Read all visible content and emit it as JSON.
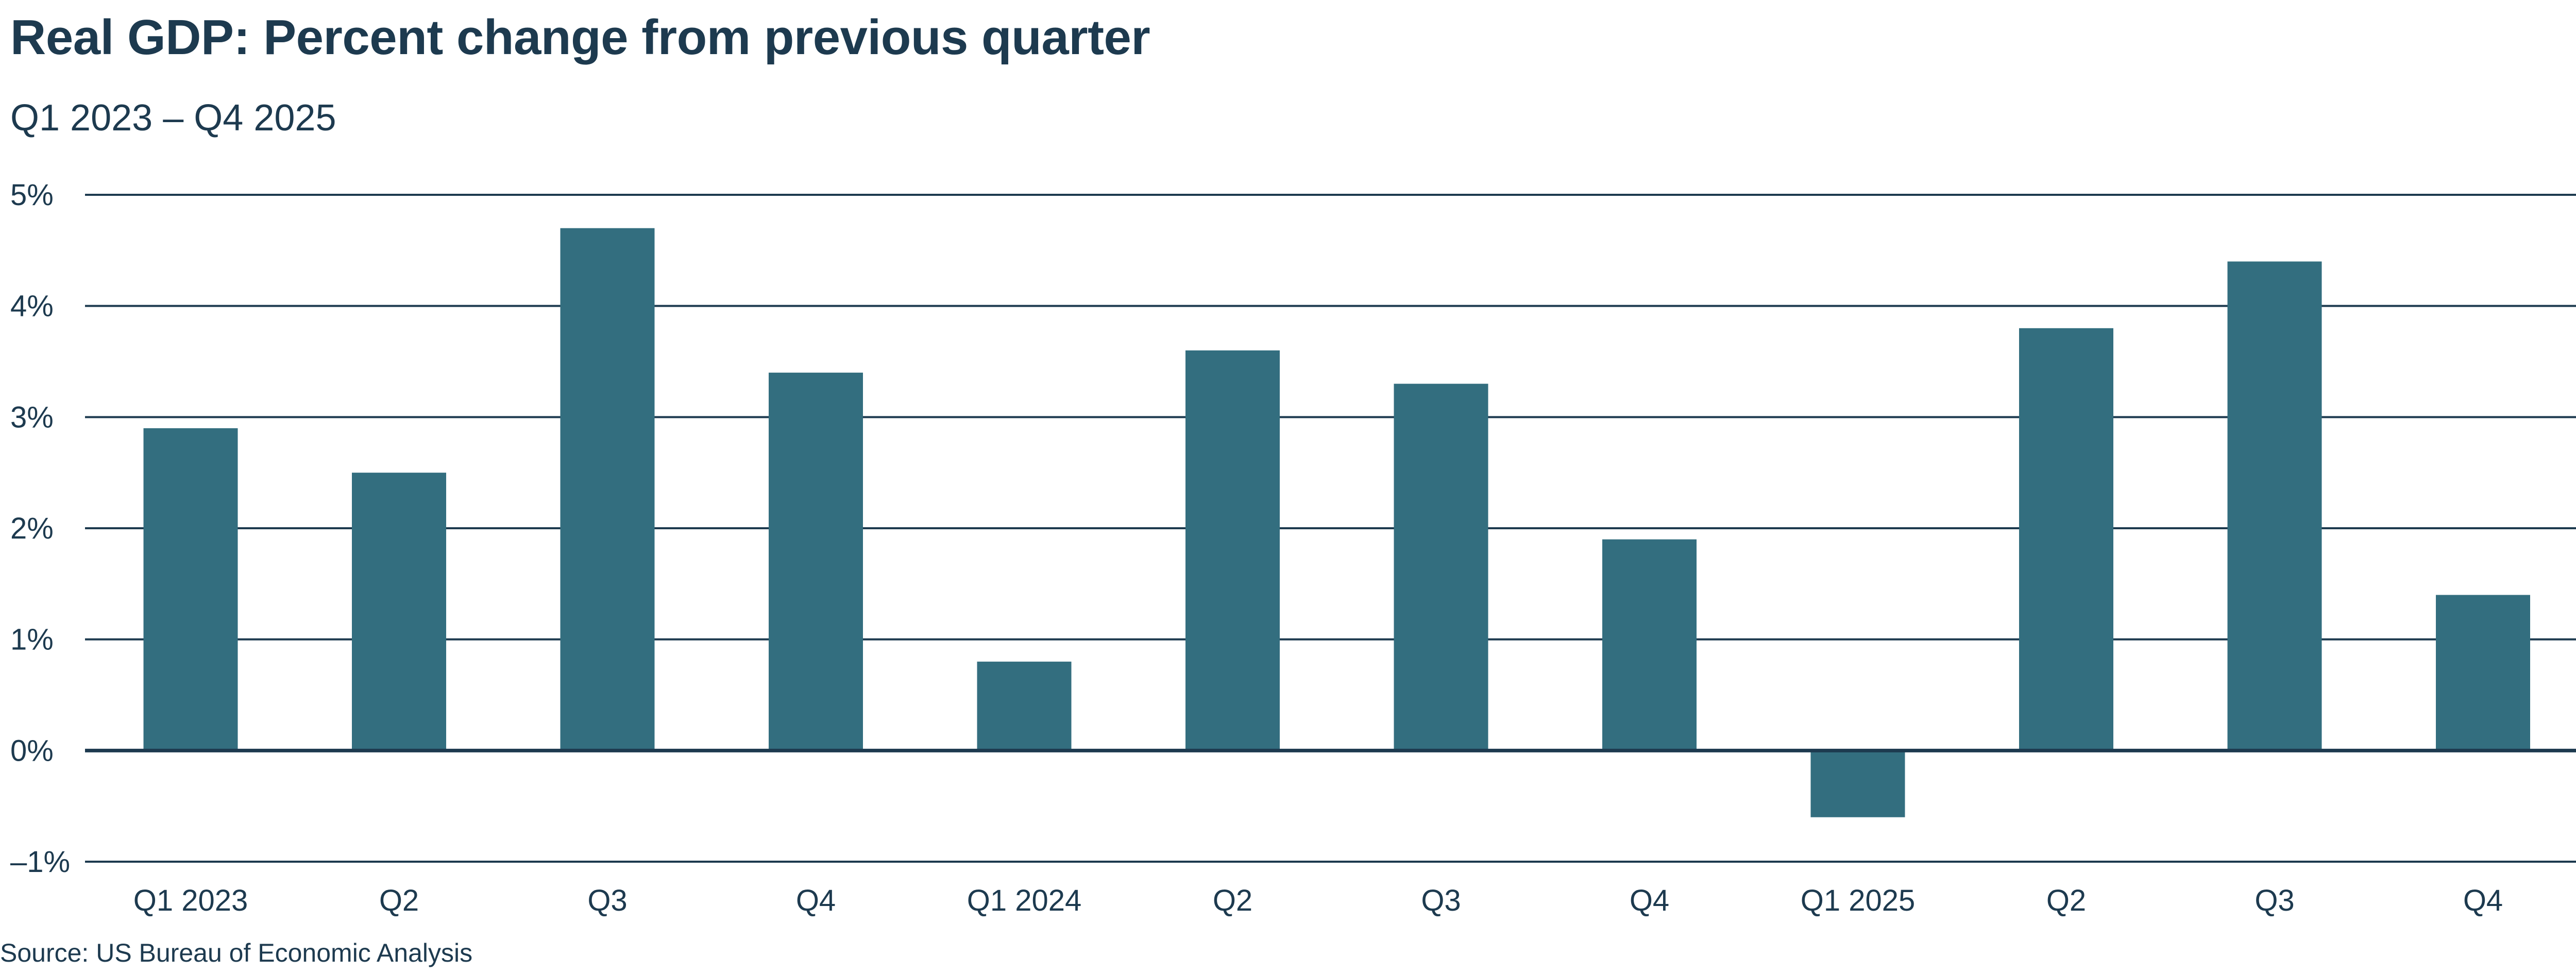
{
  "chart_data": {
    "type": "bar",
    "title": "Real GDP: Percent change from previous quarter",
    "subtitle": "Q1 2023 – Q4 2025",
    "source": "Source: US Bureau of Economic Analysis",
    "xlabel": "",
    "ylabel": "",
    "categories": [
      "Q1 2023",
      "Q2",
      "Q3",
      "Q4",
      "Q1 2024",
      "Q2",
      "Q3",
      "Q4",
      "Q1 2025",
      "Q2",
      "Q3",
      "Q4"
    ],
    "values": [
      2.9,
      2.5,
      4.7,
      3.4,
      0.8,
      3.6,
      3.3,
      1.9,
      -0.6,
      3.8,
      4.4,
      1.4
    ],
    "ylim": [
      -1,
      5
    ],
    "yticks": [
      5,
      4,
      3,
      2,
      1,
      0,
      -1
    ],
    "ytick_labels": [
      "5%",
      "4%",
      "3%",
      "2%",
      "1%",
      "0%",
      "–1%"
    ],
    "grid": true,
    "legend": "none",
    "colors": {
      "bar": "#336e7f",
      "text": "#1d3a4f",
      "gridline": "#1d3a4f"
    }
  }
}
